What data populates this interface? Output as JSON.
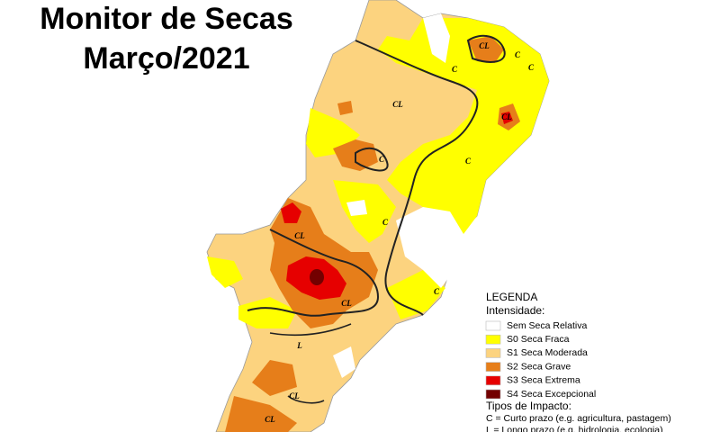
{
  "title": {
    "line1": "Monitor de Secas",
    "line2": "Março/2021"
  },
  "legend": {
    "title": "LEGENDA",
    "subtitle": "Intensidade:",
    "items": [
      {
        "label": "Sem Seca Relativa",
        "color": "#ffffff"
      },
      {
        "label": "S0 Seca Fraca",
        "color": "#ffff00"
      },
      {
        "label": "S1 Seca Moderada",
        "color": "#fcd37f"
      },
      {
        "label": "S2 Seca Grave",
        "color": "#e67e1a"
      },
      {
        "label": "S3 Seca Extrema",
        "color": "#e60000"
      },
      {
        "label": "S4 Seca Excepcional",
        "color": "#730000"
      }
    ],
    "impact_title": "Tipos de Impacto:",
    "impact_items": [
      "C = Curto prazo (e.g. agricultura, pastagem)",
      "L = Longo prazo (e.g. hidrologia, ecologia)"
    ]
  },
  "map_labels": [
    "CL",
    "C",
    "C",
    "C",
    "CL",
    "CL",
    "C",
    "C",
    "C",
    "CL",
    "C",
    "CL",
    "L",
    "CL",
    "CL"
  ]
}
